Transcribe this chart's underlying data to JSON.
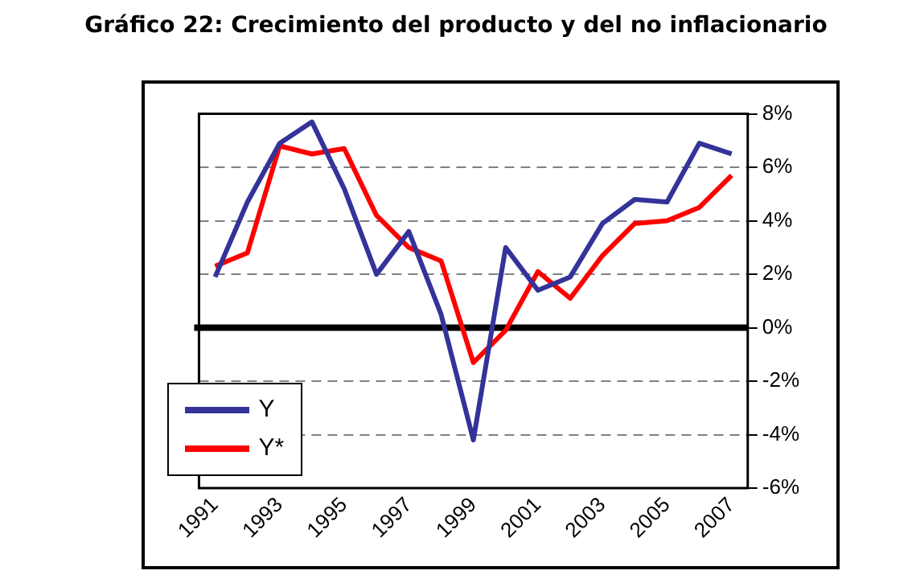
{
  "chart_data": {
    "type": "line",
    "title": "Gráfico 22: Crecimiento del producto y del no inflacionario",
    "categories": [
      "1991",
      null,
      "1993",
      null,
      "1995",
      null,
      "1997",
      null,
      "1999",
      null,
      "2001",
      null,
      "2003",
      null,
      "2005",
      null,
      "2007"
    ],
    "series": [
      {
        "name": "Y",
        "color": "#333399",
        "values": [
          1.9,
          4.7,
          6.9,
          7.7,
          5.2,
          2.0,
          3.6,
          0.5,
          -4.2,
          3.0,
          1.4,
          1.9,
          3.9,
          4.8,
          4.7,
          6.9,
          6.5
        ]
      },
      {
        "name": "Y*",
        "color": "#ff0000",
        "values": [
          2.3,
          2.8,
          6.8,
          6.5,
          6.7,
          4.2,
          3.0,
          2.5,
          -1.3,
          -0.1,
          2.1,
          1.1,
          2.7,
          3.9,
          4.0,
          4.5,
          5.7
        ]
      }
    ],
    "ylim": [
      -6,
      8
    ],
    "yticks": [
      {
        "value": -6,
        "label": "-6%"
      },
      {
        "value": -4,
        "label": "-4%"
      },
      {
        "value": -2,
        "label": "-2%"
      },
      {
        "value": 0,
        "label": "0%"
      },
      {
        "value": 2,
        "label": "2%"
      },
      {
        "value": 4,
        "label": "4%"
      },
      {
        "value": 6,
        "label": "6%"
      },
      {
        "value": 8,
        "label": "8%"
      }
    ],
    "ref_lines": [
      {
        "axis": "y",
        "value": 0,
        "color": "#000000"
      }
    ],
    "grid": "y",
    "legend": "bottom left",
    "marker": "none",
    "line_style": "solid"
  }
}
